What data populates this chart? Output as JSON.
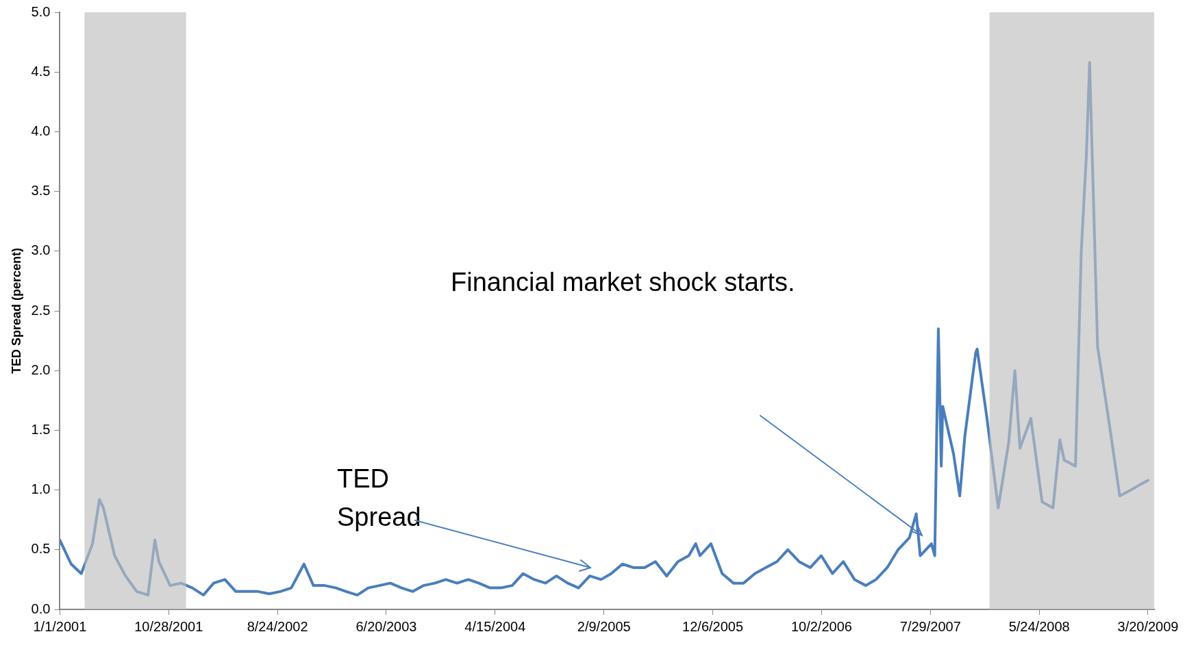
{
  "chart_data": {
    "type": "line",
    "ylabel": "TED Spread (percent)",
    "xlim": [
      "2001-01-01",
      "2009-04-06"
    ],
    "xticks": [
      {
        "value": "2001-01-01",
        "label": "1/1/2001"
      },
      {
        "value": "2001-10-28",
        "label": "10/28/2001"
      },
      {
        "value": "2002-08-24",
        "label": "8/24/2002"
      },
      {
        "value": "2003-06-20",
        "label": "6/20/2003"
      },
      {
        "value": "2004-04-15",
        "label": "4/15/2004"
      },
      {
        "value": "2005-02-09",
        "label": "2/9/2005"
      },
      {
        "value": "2005-12-06",
        "label": "12/6/2005"
      },
      {
        "value": "2006-10-02",
        "label": "10/2/2006"
      },
      {
        "value": "2007-07-29",
        "label": "7/29/2007"
      },
      {
        "value": "2008-05-24",
        "label": "5/24/2008"
      },
      {
        "value": "2009-03-20",
        "label": "3/20/2009"
      }
    ],
    "ylim": [
      0,
      5
    ],
    "yticks": [
      {
        "value": 0,
        "label": "0.0"
      },
      {
        "value": 0.5,
        "label": "0.5"
      },
      {
        "value": 1,
        "label": "1.0"
      },
      {
        "value": 1.5,
        "label": "1.5"
      },
      {
        "value": 2,
        "label": "2.0"
      },
      {
        "value": 2.5,
        "label": "2.5"
      },
      {
        "value": 3,
        "label": "3.0"
      },
      {
        "value": 3.5,
        "label": "3.5"
      },
      {
        "value": 4,
        "label": "4.0"
      },
      {
        "value": 4.5,
        "label": "4.5"
      },
      {
        "value": 5,
        "label": "5.0"
      }
    ],
    "grid": false,
    "legend": false,
    "marker": "none",
    "line_style": "solid",
    "bands": [
      {
        "axis": "x",
        "from": "2001-03-10",
        "to": "2001-12-15",
        "color": "#bfbfbf"
      },
      {
        "axis": "x",
        "from": "2008-01-08",
        "to": "2009-04-06",
        "color": "#bfbfbf"
      }
    ],
    "annotations": [
      "TED\nSpread",
      "Financial market shock starts."
    ],
    "series": [
      {
        "color": "#4a7ebb",
        "x": [
          "2001-01-01",
          "2001-02-01",
          "2001-03-01",
          "2001-04-01",
          "2001-04-20",
          "2001-05-01",
          "2001-06-01",
          "2001-07-01",
          "2001-08-01",
          "2001-09-01",
          "2001-09-20",
          "2001-10-01",
          "2001-11-01",
          "2001-12-01",
          "2002-01-01",
          "2002-02-01",
          "2002-03-01",
          "2002-04-01",
          "2002-05-01",
          "2002-06-01",
          "2002-07-01",
          "2002-08-01",
          "2002-09-01",
          "2002-10-01",
          "2002-11-05",
          "2002-12-01",
          "2003-01-01",
          "2003-02-01",
          "2003-03-01",
          "2003-04-01",
          "2003-05-01",
          "2003-06-01",
          "2003-07-01",
          "2003-08-01",
          "2003-09-01",
          "2003-10-01",
          "2003-11-01",
          "2003-12-01",
          "2004-01-01",
          "2004-02-01",
          "2004-03-01",
          "2004-04-01",
          "2004-05-01",
          "2004-06-01",
          "2004-07-01",
          "2004-08-01",
          "2004-09-01",
          "2004-10-01",
          "2004-11-01",
          "2004-12-01",
          "2005-01-01",
          "2005-02-01",
          "2005-03-01",
          "2005-04-01",
          "2005-05-01",
          "2005-06-01",
          "2005-07-01",
          "2005-08-01",
          "2005-09-01",
          "2005-10-01",
          "2005-10-20",
          "2005-11-01",
          "2005-12-01",
          "2006-01-01",
          "2006-02-01",
          "2006-03-01",
          "2006-04-01",
          "2006-05-01",
          "2006-06-01",
          "2006-07-01",
          "2006-08-01",
          "2006-09-01",
          "2006-10-01",
          "2006-11-01",
          "2006-12-01",
          "2007-01-01",
          "2007-02-01",
          "2007-03-01",
          "2007-04-01",
          "2007-05-01",
          "2007-06-01",
          "2007-06-20",
          "2007-07-01",
          "2007-08-01",
          "2007-08-10",
          "2007-08-20",
          "2007-08-28",
          "2007-09-01",
          "2007-10-01",
          "2007-10-18",
          "2007-11-01",
          "2007-12-01",
          "2007-12-05",
          "2008-01-01",
          "2008-02-01",
          "2008-03-01",
          "2008-03-18",
          "2008-04-01",
          "2008-05-01",
          "2008-06-01",
          "2008-07-01",
          "2008-07-20",
          "2008-08-01",
          "2008-09-01",
          "2008-09-17",
          "2008-10-01",
          "2008-10-10",
          "2008-11-01",
          "2008-12-01",
          "2009-01-01",
          "2009-02-01",
          "2009-03-01",
          "2009-03-20"
        ],
        "values": [
          0.58,
          0.38,
          0.3,
          0.55,
          0.92,
          0.85,
          0.45,
          0.28,
          0.15,
          0.12,
          0.58,
          0.4,
          0.2,
          0.22,
          0.18,
          0.12,
          0.22,
          0.25,
          0.15,
          0.15,
          0.15,
          0.13,
          0.15,
          0.18,
          0.38,
          0.2,
          0.2,
          0.18,
          0.15,
          0.12,
          0.18,
          0.2,
          0.22,
          0.18,
          0.15,
          0.2,
          0.22,
          0.25,
          0.22,
          0.25,
          0.22,
          0.18,
          0.18,
          0.2,
          0.3,
          0.25,
          0.22,
          0.28,
          0.22,
          0.18,
          0.28,
          0.25,
          0.3,
          0.38,
          0.35,
          0.35,
          0.4,
          0.28,
          0.4,
          0.45,
          0.55,
          0.45,
          0.55,
          0.3,
          0.22,
          0.22,
          0.3,
          0.35,
          0.4,
          0.5,
          0.4,
          0.35,
          0.45,
          0.3,
          0.4,
          0.25,
          0.2,
          0.25,
          0.35,
          0.5,
          0.6,
          0.8,
          0.45,
          0.55,
          0.45,
          2.35,
          1.2,
          1.7,
          1.3,
          0.95,
          1.45,
          2.15,
          2.18,
          1.6,
          0.85,
          1.4,
          2.0,
          1.35,
          1.6,
          0.9,
          0.85,
          1.42,
          1.25,
          1.2,
          3.0,
          3.8,
          4.58,
          2.2,
          1.6,
          0.95,
          1.0,
          1.05,
          1.08
        ]
      }
    ]
  }
}
